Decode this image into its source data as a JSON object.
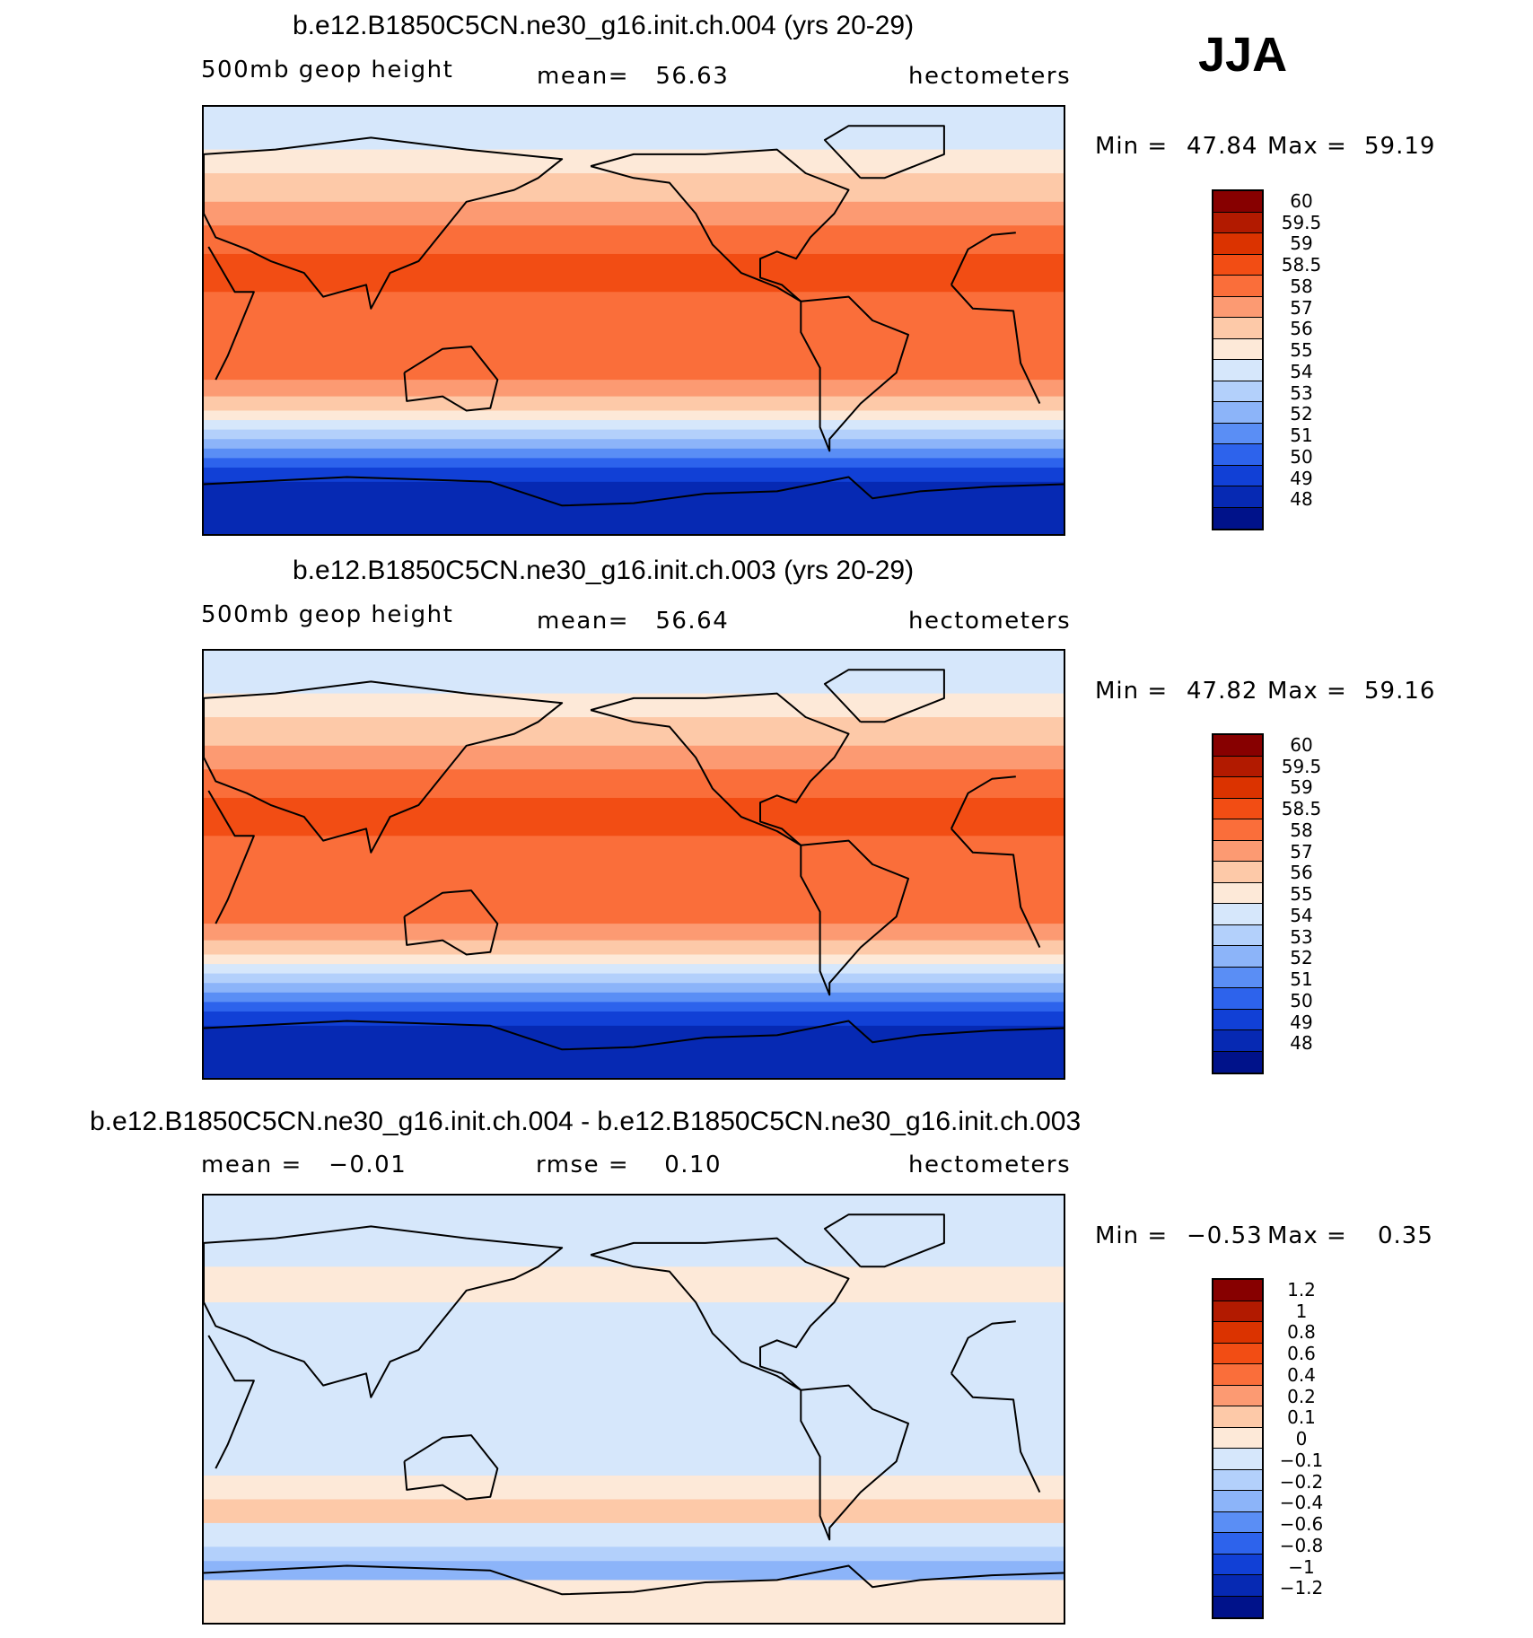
{
  "season": "JJA",
  "panels": [
    {
      "title": "b.e12.B1850C5CN.ne30_g16.init.ch.004 (yrs 20-29)",
      "variable": "500mb geop height",
      "stat_text": "mean=   56.63",
      "units": "hectometers",
      "min_label": "Min =",
      "min_value": "47.84",
      "max_label": "Max =",
      "max_value": "59.19",
      "colorbar_labels": [
        "60",
        "59.5",
        "59",
        "58.5",
        "58",
        "57",
        "56",
        "55",
        "54",
        "53",
        "52",
        "51",
        "50",
        "49",
        "48"
      ],
      "colors": [
        "#870000",
        "#b21a00",
        "#db3300",
        "#f24d14",
        "#fa6e3a",
        "#fc9a72",
        "#fdc9a8",
        "#fde9d8",
        "#d6e7fb",
        "#b3d0fb",
        "#8cb4f9",
        "#5a8ef5",
        "#2d63ec",
        "#1140d6",
        "#0629b3",
        "#00128a"
      ],
      "bands": [
        {
          "lat": 90,
          "level": 54
        },
        {
          "lat": 80,
          "level": 54.5
        },
        {
          "lat": 72,
          "level": 55.5
        },
        {
          "lat": 62,
          "level": 56.5
        },
        {
          "lat": 50,
          "level": 57.5
        },
        {
          "lat": 40,
          "level": 58.2
        },
        {
          "lat": 28,
          "level": 58.7
        },
        {
          "lat": 12,
          "level": 58.3
        },
        {
          "lat": -10,
          "level": 58.2
        },
        {
          "lat": -25,
          "level": 57.5
        },
        {
          "lat": -32,
          "level": 56.5
        },
        {
          "lat": -38,
          "level": 55.5
        },
        {
          "lat": -42,
          "level": 54.5
        },
        {
          "lat": -46,
          "level": 53.5
        },
        {
          "lat": -50,
          "level": 52.5
        },
        {
          "lat": -54,
          "level": 51.5
        },
        {
          "lat": -58,
          "level": 50.5
        },
        {
          "lat": -62,
          "level": 49.5
        },
        {
          "lat": -68,
          "level": 48.5
        },
        {
          "lat": -90,
          "level": 48.5
        }
      ]
    },
    {
      "title": "b.e12.B1850C5CN.ne30_g16.init.ch.003 (yrs 20-29)",
      "variable": "500mb geop height",
      "stat_text": "mean=   56.64",
      "units": "hectometers",
      "min_label": "Min =",
      "min_value": "47.82",
      "max_label": "Max =",
      "max_value": "59.16",
      "colorbar_labels": [
        "60",
        "59.5",
        "59",
        "58.5",
        "58",
        "57",
        "56",
        "55",
        "54",
        "53",
        "52",
        "51",
        "50",
        "49",
        "48"
      ],
      "colors": [
        "#870000",
        "#b21a00",
        "#db3300",
        "#f24d14",
        "#fa6e3a",
        "#fc9a72",
        "#fdc9a8",
        "#fde9d8",
        "#d6e7fb",
        "#b3d0fb",
        "#8cb4f9",
        "#5a8ef5",
        "#2d63ec",
        "#1140d6",
        "#0629b3",
        "#00128a"
      ],
      "bands": [
        {
          "lat": 90,
          "level": 54
        },
        {
          "lat": 80,
          "level": 54.5
        },
        {
          "lat": 72,
          "level": 55.5
        },
        {
          "lat": 62,
          "level": 56.5
        },
        {
          "lat": 50,
          "level": 57.5
        },
        {
          "lat": 40,
          "level": 58.2
        },
        {
          "lat": 28,
          "level": 58.7
        },
        {
          "lat": 12,
          "level": 58.3
        },
        {
          "lat": -10,
          "level": 58.2
        },
        {
          "lat": -25,
          "level": 57.5
        },
        {
          "lat": -32,
          "level": 56.5
        },
        {
          "lat": -38,
          "level": 55.5
        },
        {
          "lat": -42,
          "level": 54.5
        },
        {
          "lat": -46,
          "level": 53.5
        },
        {
          "lat": -50,
          "level": 52.5
        },
        {
          "lat": -54,
          "level": 51.5
        },
        {
          "lat": -58,
          "level": 50.5
        },
        {
          "lat": -62,
          "level": 49.5
        },
        {
          "lat": -68,
          "level": 48.5
        },
        {
          "lat": -90,
          "level": 48.5
        }
      ]
    },
    {
      "title": "b.e12.B1850C5CN.ne30_g16.init.ch.004 - b.e12.B1850C5CN.ne30_g16.init.ch.003",
      "variable": "mean =   −0.01",
      "stat_text": "rmse =    0.10",
      "units": "hectometers",
      "min_label": "Min =",
      "min_value": "−0.53",
      "max_label": "Max =",
      "max_value": "0.35",
      "colorbar_labels": [
        "1.2",
        "1",
        "0.8",
        "0.6",
        "0.4",
        "0.2",
        "0.1",
        "0",
        "−0.1",
        "−0.2",
        "−0.4",
        "−0.6",
        "−0.8",
        "−1",
        "−1.2"
      ],
      "colors": [
        "#870000",
        "#b21a00",
        "#db3300",
        "#f24d14",
        "#fa6e3a",
        "#fc9a72",
        "#fdc9a8",
        "#fde9d8",
        "#d6e7fb",
        "#b3d0fb",
        "#8cb4f9",
        "#5a8ef5",
        "#2d63ec",
        "#1140d6",
        "#0629b3",
        "#00128a"
      ],
      "bands": [
        {
          "lat": 90,
          "level": -0.05
        },
        {
          "lat": 60,
          "level": 0.05
        },
        {
          "lat": 45,
          "level": -0.05
        },
        {
          "lat": 20,
          "level": -0.05
        },
        {
          "lat": -20,
          "level": -0.05
        },
        {
          "lat": -28,
          "level": 0.05
        },
        {
          "lat": -38,
          "level": 0.15
        },
        {
          "lat": -48,
          "level": -0.05
        },
        {
          "lat": -58,
          "level": -0.15
        },
        {
          "lat": -64,
          "level": -0.3
        },
        {
          "lat": -72,
          "level": 0.05
        },
        {
          "lat": -90,
          "level": 0.05
        }
      ]
    }
  ]
}
